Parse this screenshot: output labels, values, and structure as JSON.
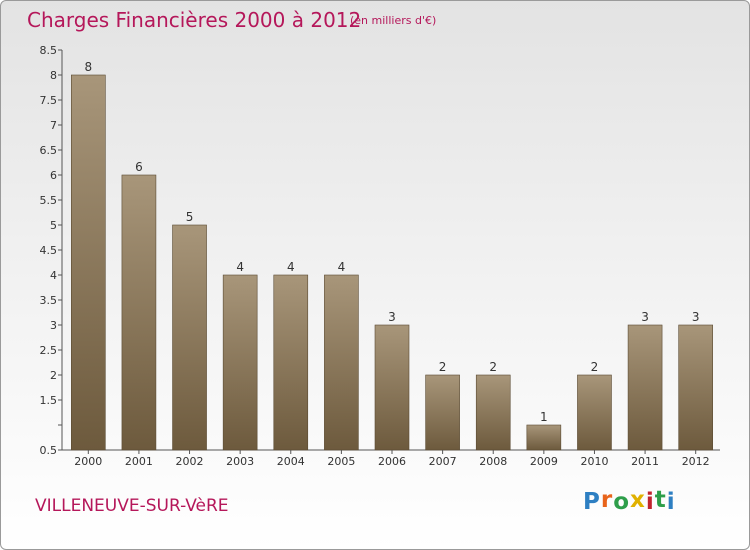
{
  "header": {
    "title": "Charges Financières 2000 à 2012",
    "unit": "(en milliers d'€)"
  },
  "footer": {
    "commune": "VILLENEUVE-SUR-VèRE",
    "logo": "Proxiti"
  },
  "colors": {
    "title": "#b5175a",
    "bar_light": "#a8967a",
    "bar_dark": "#6d5a3d",
    "logo": [
      "#2e7fc2",
      "#e8641b",
      "#2e9e4a",
      "#e0b100",
      "#c0232e",
      "#2e9e4a",
      "#2e7fc2"
    ]
  },
  "chart_data": {
    "type": "bar",
    "title": "Charges Financières 2000 à 2012",
    "subtitle": "(en milliers d'€)",
    "categories": [
      "2000",
      "2001",
      "2002",
      "2003",
      "2004",
      "2005",
      "2006",
      "2007",
      "2008",
      "2009",
      "2010",
      "2011",
      "2012"
    ],
    "values": [
      8,
      6,
      5,
      4,
      4,
      4,
      3,
      2,
      2,
      1,
      2,
      3,
      3
    ],
    "value_labels": [
      "8",
      "6",
      "5",
      "4",
      "4",
      "4",
      "3",
      "2",
      "2",
      "1",
      "2",
      "3",
      "3"
    ],
    "ylim": [
      0.5,
      8.5
    ],
    "yticks": [
      0.5,
      1,
      1.5,
      2,
      2.5,
      3,
      3.5,
      4,
      4.5,
      5,
      5.5,
      6,
      6.5,
      7,
      7.5,
      8,
      8.5
    ],
    "ytick_labels": [
      "0.5",
      "",
      "1.5",
      "2",
      "2.5",
      "3",
      "3.5",
      "4",
      "4.5",
      "5",
      "5.5",
      "6",
      "6.5",
      "7",
      "7.5",
      "8",
      "8.5"
    ],
    "xlabel": "",
    "ylabel": "",
    "grid": false
  }
}
